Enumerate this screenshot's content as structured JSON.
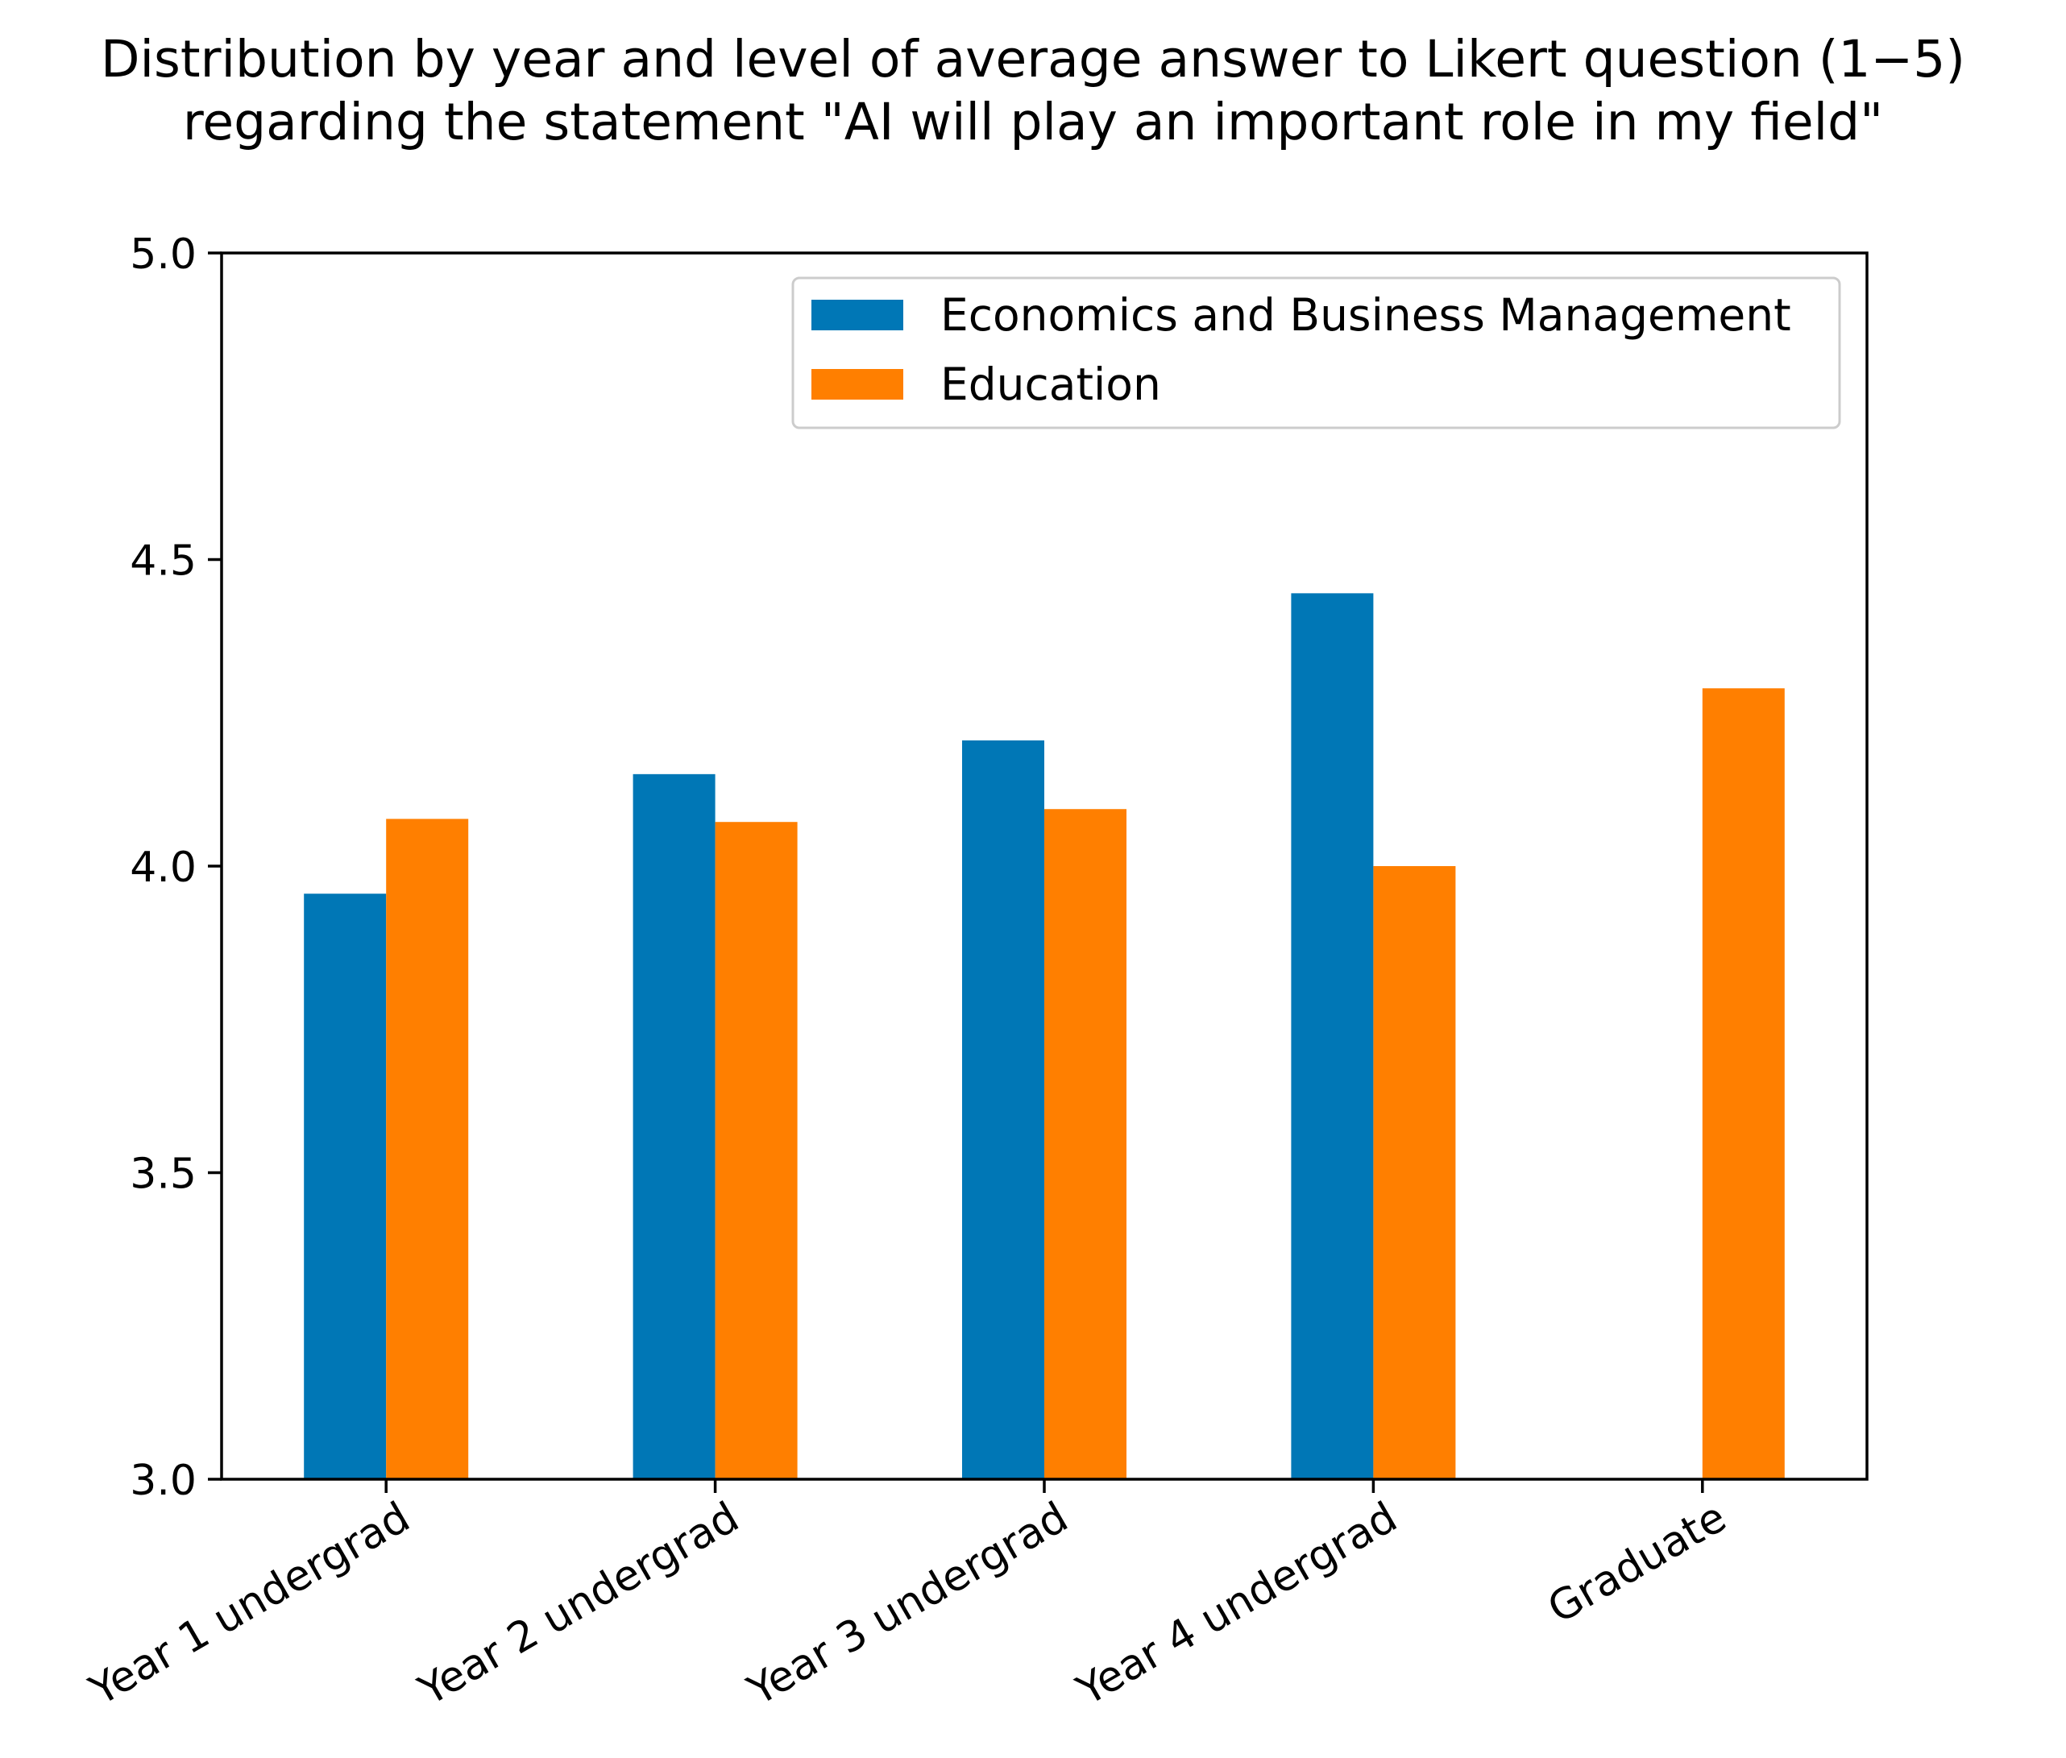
{
  "chart_data": {
    "type": "bar",
    "title_lines": [
      "Distribution by year and level of average answer to Likert question (1−5)",
      "regarding the statement \"AI will play an important role in my field\""
    ],
    "xlabel": "",
    "ylabel": "",
    "categories": [
      "Year 1 undergrad",
      "Year 2 undergrad",
      "Year 3 undergrad",
      "Year 4 undergrad",
      "Graduate"
    ],
    "series": [
      {
        "name": "Economics and Business Management",
        "color": "#0077b6",
        "values": [
          3.955,
          4.15,
          4.205,
          4.445,
          null
        ]
      },
      {
        "name": "Education",
        "color": "#ff7f00",
        "values": [
          4.077,
          4.072,
          4.093,
          4.0,
          4.29
        ]
      }
    ],
    "ylim": [
      3.0,
      5.0
    ],
    "yticks": [
      "3.0",
      "3.5",
      "4.0",
      "4.5",
      "5.0"
    ],
    "grid": false,
    "legend": {
      "position": "top-right"
    }
  }
}
